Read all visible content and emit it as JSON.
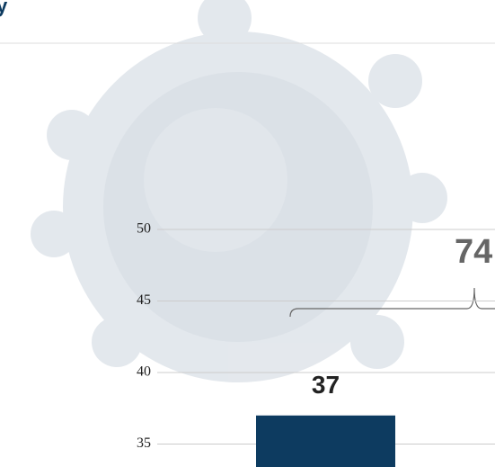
{
  "chart_data": {
    "type": "bar",
    "title": "y",
    "annotation": "74",
    "categories": [
      null
    ],
    "values": [
      37
    ],
    "color": "#0d3b60",
    "ylim": [
      33.4,
      50
    ],
    "yticks": [
      35,
      40,
      45,
      50
    ],
    "grid": true
  }
}
